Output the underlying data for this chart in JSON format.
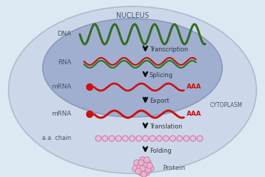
{
  "bg_color": "#dce8f2",
  "cell_outer_fc": "#ccd8ea",
  "cell_outer_ec": "#aabcce",
  "nucleus_fc": "#a0afd0",
  "nucleus_ec": "#8898b8",
  "nucleus_label": "NUCLEUS",
  "cytoplasm_label": "CYTOPLASM",
  "dna_label": "DNA",
  "rna_label": "RNA",
  "mrna_label1": "mRNA",
  "mrna_label2": "mRNA",
  "aachan_label": "a.a. chain",
  "protein_label": "Protein",
  "step_labels": [
    "Transcription",
    "Splicing",
    "Export",
    "Translation",
    "Folding"
  ],
  "red_color": "#cc1111",
  "green_color": "#227722",
  "pink_color": "#cc77aa",
  "pink_fill": "#e8b8cc",
  "arrow_color": "#111111",
  "text_color": "#333333",
  "aaa_color": "#cc1111",
  "label_color": "#445566"
}
